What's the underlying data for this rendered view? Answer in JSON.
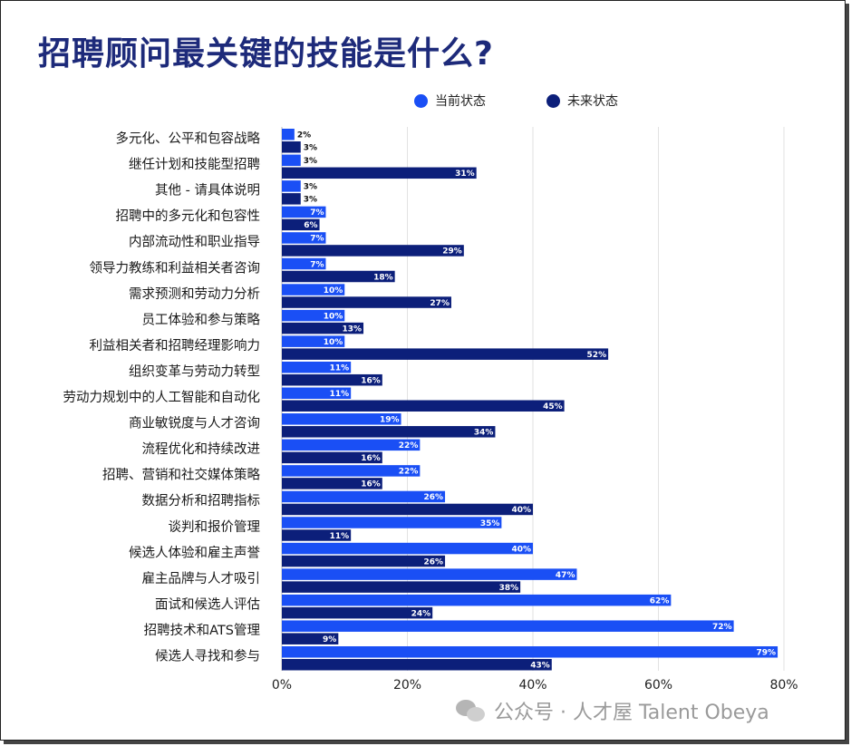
{
  "title": "招聘顾问最关键的技能是什么?",
  "legend": [
    {
      "label": "当前状态",
      "color": "#1a4ff5"
    },
    {
      "label": "未来状态",
      "color": "#0c1f7a"
    }
  ],
  "watermark": "公众号 · 人才屋 Talent Obeya",
  "chart_data": {
    "type": "bar",
    "orientation": "horizontal",
    "categories": [
      "多元化、公平和包容战略",
      "继任计划和技能型招聘",
      "其他 - 请具体说明",
      "招聘中的多元化和包容性",
      "内部流动性和职业指导",
      "领导力教练和利益相关者咨询",
      "需求预测和劳动力分析",
      "员工体验和参与策略",
      "利益相关者和招聘经理影响力",
      "组织变革与劳动力转型",
      "劳动力规划中的人工智能和自动化",
      "商业敏锐度与人才咨询",
      "流程优化和持续改进",
      "招聘、营销和社交媒体策略",
      "数据分析和招聘指标",
      "谈判和报价管理",
      "候选人体验和雇主声誉",
      "雇主品牌与人才吸引",
      "面试和候选人评估",
      "招聘技术和ATS管理",
      "候选人寻找和参与"
    ],
    "series": [
      {
        "name": "当前状态",
        "color": "#1a4ff5",
        "values": [
          2,
          3,
          3,
          7,
          7,
          7,
          10,
          10,
          10,
          11,
          11,
          19,
          22,
          22,
          26,
          35,
          40,
          47,
          62,
          72,
          79
        ]
      },
      {
        "name": "未来状态",
        "color": "#0c1f7a",
        "values": [
          3,
          31,
          3,
          6,
          29,
          18,
          27,
          13,
          52,
          16,
          45,
          34,
          16,
          16,
          40,
          11,
          26,
          38,
          24,
          9,
          43
        ]
      }
    ],
    "value_labels": {
      "current": [
        "2%",
        "3%",
        "3%",
        "7%",
        "7%",
        "7%",
        "10%",
        "10%",
        "10%",
        "11%",
        "11%",
        "19%",
        "22%",
        "22%",
        "26%",
        "35%",
        "40%",
        "47%",
        "62%",
        "72%",
        "79%"
      ],
      "future": [
        "3%",
        "31%",
        "3%",
        "6%",
        "29%",
        "18%",
        "27%",
        "13%",
        "52%",
        "16%",
        "45%",
        "34%",
        "16%",
        "16%",
        "40%",
        "11%",
        "26%",
        "38%",
        "24%",
        "9%",
        "43%"
      ]
    },
    "x_ticks": [
      "0%",
      "20%",
      "40%",
      "60%",
      "80%"
    ],
    "xlim": [
      0,
      80
    ],
    "grid": true,
    "legend_position": "top-right"
  }
}
